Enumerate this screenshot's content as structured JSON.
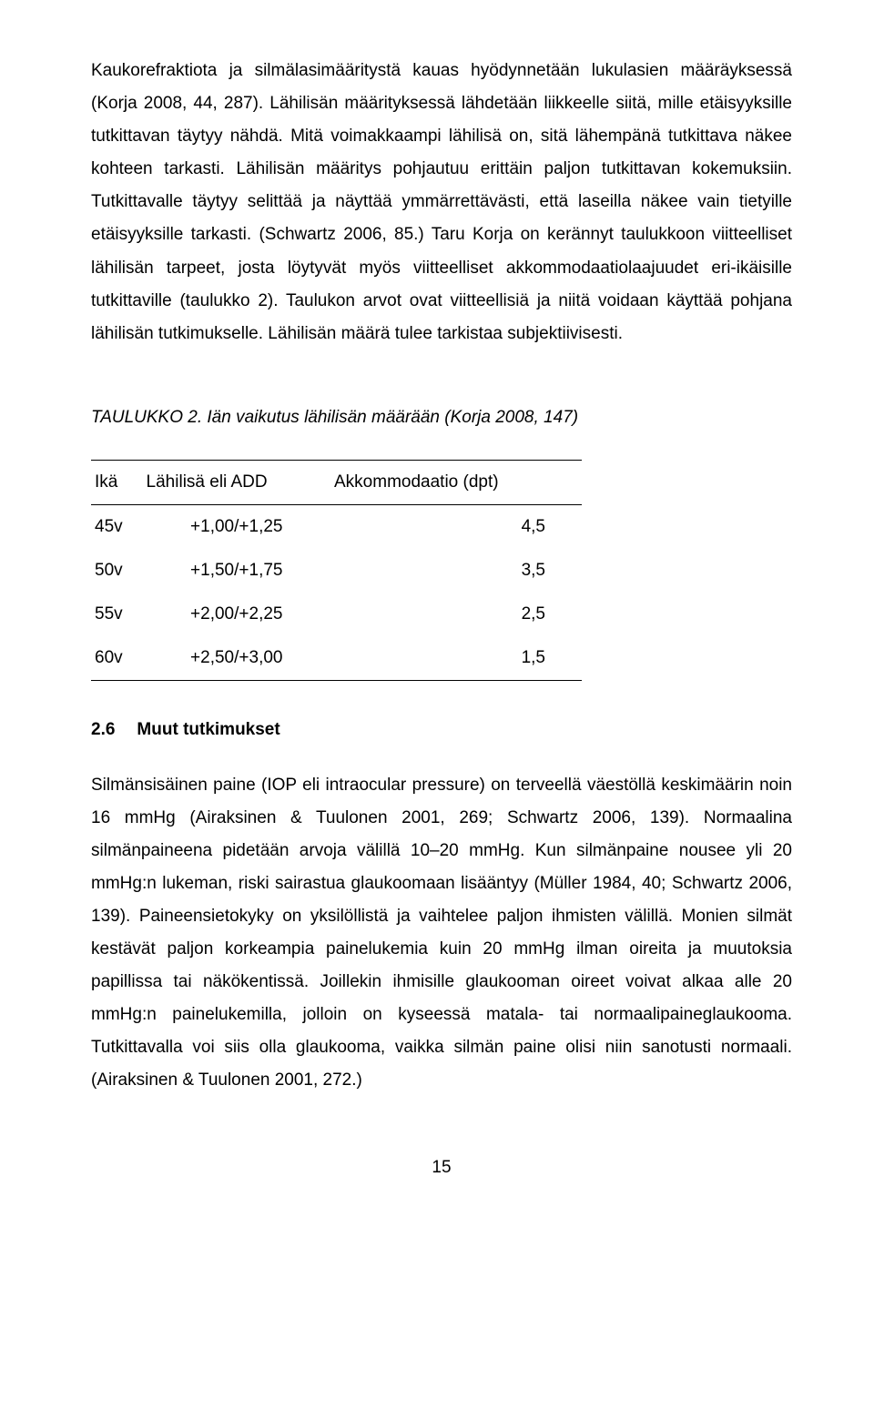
{
  "paragraphs": {
    "p1": "Kaukorefraktiota ja silmälasimääritystä kauas hyödynnetään lukulasien määräyksessä (Korja 2008, 44, 287). Lähilisän määrityksessä lähdetään liikkeelle siitä, mille etäisyyksille tutkittavan täytyy nähdä. Mitä voimakkaampi lähilisä on, sitä lähempänä tutkittava näkee kohteen tarkasti. Lähilisän määritys pohjautuu erittäin paljon tutkittavan kokemuksiin. Tutkittavalle täytyy selittää ja näyttää ymmärrettävästi, että laseilla näkee vain tietyille etäisyyksille tarkasti. (Schwartz 2006, 85.) Taru Korja on kerännyt taulukkoon viitteelliset lähilisän tarpeet, josta löytyvät myös viitteelliset akkommodaatiolaajuudet eri-ikäisille tutkittaville (taulukko 2). Taulukon arvot ovat viitteellisiä ja niitä voidaan käyttää pohjana lähilisän tutkimukselle. Lähilisän määrä tulee tarkistaa subjektiivisesti.",
    "p2": "Silmänsisäinen paine (IOP eli intraocular pressure) on terveellä väestöllä keskimäärin noin 16 mmHg (Airaksinen & Tuulonen 2001, 269; Schwartz 2006, 139). Normaalina silmänpaineena pidetään arvoja välillä 10–20 mmHg. Kun silmänpaine nousee yli 20 mmHg:n lukeman, riski sairastua glaukoomaan lisääntyy (Müller 1984, 40; Schwartz 2006, 139). Paineensietokyky on yksilöllistä ja vaihtelee paljon ihmisten välillä. Monien silmät kestävät paljon korkeampia painelukemia kuin 20 mmHg ilman oireita ja muutoksia papillissa tai näkökentissä. Joillekin ihmisille glaukooman oireet voivat alkaa alle 20 mmHg:n painelukemilla, jolloin on kyseessä matala- tai normaalipaineglaukooma. Tutkittavalla voi siis olla glaukooma, vaikka silmän paine olisi niin sanotusti normaali. (Airaksinen & Tuulonen 2001, 272.)"
  },
  "table": {
    "title": "TAULUKKO 2. Iän vaikutus lähilisän määrään (Korja 2008, 147)",
    "columns": [
      "Ikä",
      "Lähilisä eli ADD",
      "Akkommodaatio (dpt)"
    ],
    "rows": [
      [
        "45v",
        "+1,00/+1,25",
        "4,5"
      ],
      [
        "50v",
        "+1,50/+1,75",
        "3,5"
      ],
      [
        "55v",
        "+2,00/+2,25",
        "2,5"
      ],
      [
        "60v",
        "+2,50/+3,00",
        "1,5"
      ]
    ]
  },
  "section": {
    "number": "2.6",
    "title": "Muut tutkimukset"
  },
  "page_number": "15"
}
